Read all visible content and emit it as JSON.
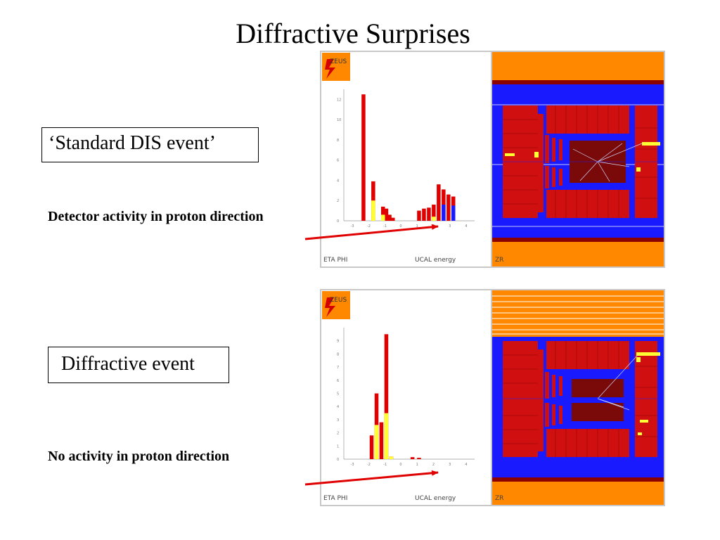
{
  "slide": {
    "title": "Diffractive Surprises",
    "standard_label": "‘Standard DIS event’",
    "standard_note": "Detector activity in proton direction",
    "diffractive_label": "Diffractive event",
    "diffractive_note": "No activity in proton direction"
  },
  "event_display": {
    "logo": "ZEUS",
    "left_caption": "ETA PHI",
    "center_caption": "UCAL energy",
    "right_caption": "ZR"
  },
  "colors": {
    "red": "#e00000",
    "yellow": "#ffff33",
    "blue": "#1a1aff",
    "orange": "#ff8800",
    "maroon": "#8b0000",
    "arrow": "#e00000"
  },
  "chart_data": [
    {
      "type": "bar",
      "xlabel": "ETA",
      "ylabel": "",
      "ylim": [
        0,
        13
      ],
      "x_ticks": [
        "-3",
        "-2",
        "-1",
        "0",
        "1",
        "2",
        "3",
        "4"
      ],
      "y_ticks": [
        "0",
        "2",
        "4",
        "6",
        "8",
        "10",
        "12"
      ],
      "series": [
        {
          "color": "red",
          "values": [
            [
              -2.3,
              12.5
            ],
            [
              -1.7,
              3.9
            ],
            [
              -1.1,
              1.4
            ],
            [
              -0.9,
              1.2
            ],
            [
              -0.7,
              0.6
            ],
            [
              -0.5,
              0.3
            ],
            [
              1.1,
              1.0
            ],
            [
              1.4,
              1.2
            ],
            [
              1.7,
              1.3
            ],
            [
              2.0,
              1.6
            ],
            [
              2.3,
              3.6
            ],
            [
              2.6,
              3.1
            ],
            [
              2.9,
              2.6
            ],
            [
              3.2,
              2.4
            ]
          ]
        },
        {
          "color": "yellow",
          "values": [
            [
              -1.7,
              2.0
            ],
            [
              -1.1,
              0.6
            ],
            [
              2.0,
              0.4
            ]
          ]
        },
        {
          "color": "blue",
          "values": [
            [
              2.6,
              1.6
            ],
            [
              3.2,
              1.5
            ]
          ]
        }
      ]
    },
    {
      "type": "bar",
      "xlabel": "ETA",
      "ylabel": "",
      "ylim": [
        0,
        10
      ],
      "x_ticks": [
        "-3",
        "-2",
        "-1",
        "0",
        "1",
        "2",
        "3",
        "4"
      ],
      "y_ticks": [
        "0",
        "1",
        "2",
        "3",
        "4",
        "5",
        "6",
        "7",
        "8",
        "9"
      ],
      "series": [
        {
          "color": "red",
          "values": [
            [
              -1.8,
              1.8
            ],
            [
              -1.5,
              5.0
            ],
            [
              -1.2,
              2.8
            ],
            [
              -0.9,
              9.5
            ],
            [
              -0.6,
              0.2
            ],
            [
              0.7,
              0.15
            ],
            [
              1.1,
              0.1
            ]
          ]
        },
        {
          "color": "yellow",
          "values": [
            [
              -1.5,
              2.6
            ],
            [
              -0.9,
              3.5
            ],
            [
              -0.6,
              0.2
            ]
          ]
        }
      ]
    }
  ]
}
